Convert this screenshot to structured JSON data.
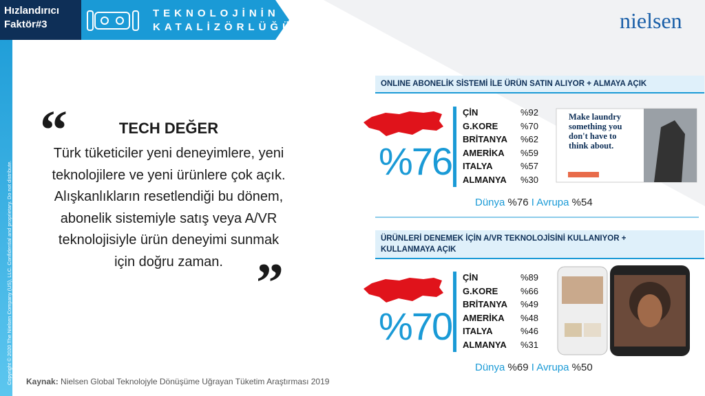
{
  "header": {
    "badge": [
      "Hızlandırıcı",
      "Faktör#3"
    ],
    "title": [
      "TEKNOLOJİNİN",
      "KATALİZÖRLÜĞÜ"
    ],
    "logo": "nielsen"
  },
  "sidebar": "Copyright © 2020 The Nielsen Company (US), LLC. Confidential and proprietary. Do not distribute.",
  "quote": {
    "open": "“",
    "close": "”",
    "heading": "TECH DEĞER",
    "lines": [
      "Türk tüketiciler yeni deneyimlere, yeni",
      "teknolojilere ve yeni ürünlere çok açık.",
      "Alışkanlıkların resetlendiği bu dönem,",
      "abonelik sistemiyle satış veya A/VR",
      "teknolojisiyle ürün deneyimi sunmak",
      "için doğru zaman."
    ]
  },
  "panels": [
    {
      "title": [
        "ONLINE ABONELİK SİSTEMİ İLE ÜRÜN SATIN ALIYOR + ALMAYA AÇIK"
      ],
      "big": "%76",
      "rows": [
        [
          "ÇİN",
          "%92"
        ],
        [
          "G.KORE",
          "%70"
        ],
        [
          "BRİTANYA",
          "%62"
        ],
        [
          "AMERİKA",
          "%59"
        ],
        [
          "ITALYA",
          "%57"
        ],
        [
          "ALMANYA",
          "%30"
        ]
      ],
      "footer": [
        "Dünya ",
        "%76",
        " I Avrupa ",
        "%54"
      ],
      "ad": "Make laundry something you don't have to think about."
    },
    {
      "title": [
        "ÜRÜNLERİ DENEMEK İÇİN A/VR TEKNOLOJİSİNİ KULLANIYOR +",
        "KULLANMAYA AÇIK"
      ],
      "big": "%70",
      "rows": [
        [
          "ÇİN",
          "%89"
        ],
        [
          "G.KORE",
          "%66"
        ],
        [
          "BRİTANYA",
          "%49"
        ],
        [
          "AMERİKA",
          "%48"
        ],
        [
          "ITALYA",
          "%46"
        ],
        [
          "ALMANYA",
          "%31"
        ]
      ],
      "footer": [
        "Dünya ",
        "%69",
        " I Avrupa ",
        "%50"
      ]
    }
  ],
  "source": {
    "label": "Kaynak:",
    "text": " Nielsen Global Teknolojyle Dönüşüme Uğrayan Tüketim Araştırması 2019"
  }
}
